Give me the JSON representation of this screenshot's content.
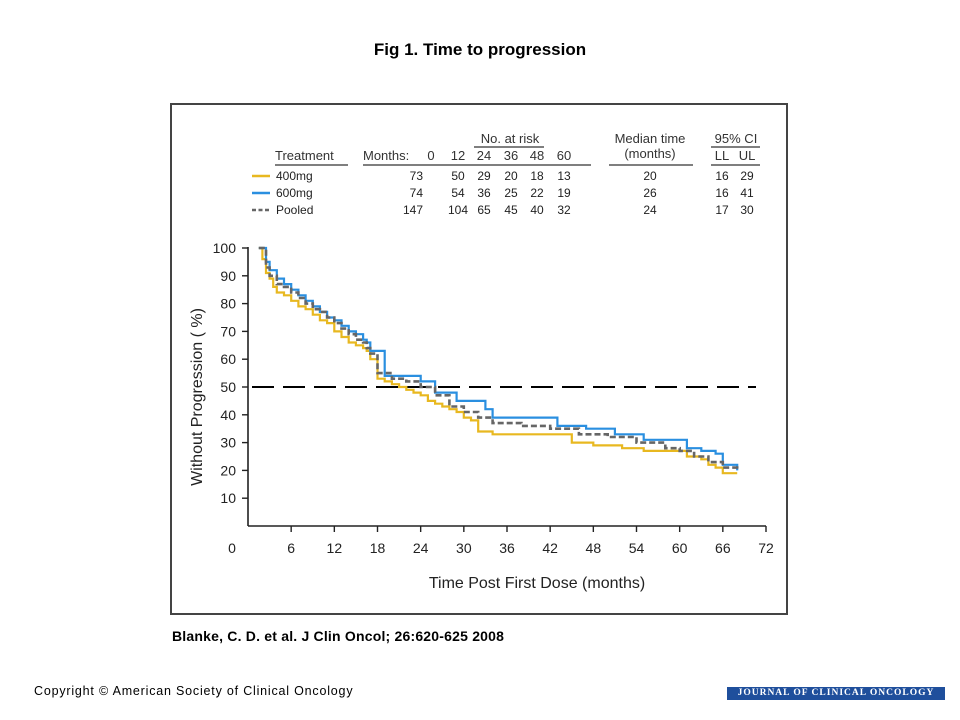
{
  "title": "Fig 1. Time to progression",
  "citation": "Blanke, C. D. et al. J Clin Oncol; 26:620-625 2008",
  "copyright": "Copyright © American Society of Clinical Oncology",
  "journal": "JOURNAL OF CLINICAL ONCOLOGY",
  "risk_table": {
    "headers": {
      "treatment": "Treatment",
      "months": "Months:",
      "no_at_risk": "No. at risk",
      "median": "Median time",
      "median_sub": "(months)",
      "ci": "95% CI",
      "ll": "LL",
      "ul": "UL"
    },
    "month_cols": [
      "0",
      "12",
      "24",
      "36",
      "48",
      "60"
    ],
    "rows": [
      {
        "label": "400mg",
        "color": "#e8b820",
        "dash": false,
        "at_risk": [
          "73",
          "50",
          "29",
          "20",
          "18",
          "13"
        ],
        "median": "20",
        "ll": "16",
        "ul": "29"
      },
      {
        "label": "600mg",
        "color": "#2a8fe0",
        "dash": false,
        "at_risk": [
          "74",
          "54",
          "36",
          "25",
          "22",
          "19"
        ],
        "median": "26",
        "ll": "16",
        "ul": "41"
      },
      {
        "label": "Pooled",
        "color": "#666666",
        "dash": true,
        "at_risk": [
          "147",
          "104",
          "65",
          "45",
          "40",
          "32"
        ],
        "median": "24",
        "ll": "17",
        "ul": "30"
      }
    ]
  },
  "chart_data": {
    "type": "line",
    "xlabel": "Time Post First Dose (months)",
    "ylabel": "Without Progression ( %)",
    "xlim": [
      0,
      72
    ],
    "ylim": [
      0,
      100
    ],
    "xticks": [
      0,
      6,
      12,
      18,
      24,
      30,
      36,
      42,
      48,
      54,
      60,
      66,
      72
    ],
    "yticks": [
      10,
      20,
      30,
      40,
      50,
      60,
      70,
      80,
      90,
      100
    ],
    "reference_line": {
      "y": 50,
      "style": "dashed",
      "color": "#000000"
    },
    "grid": false,
    "series": [
      {
        "name": "400mg",
        "color": "#e8b820",
        "dash": false,
        "x": [
          1.5,
          2,
          2.5,
          3,
          3.5,
          4,
          5,
          6,
          7,
          8,
          9,
          10,
          11,
          12,
          13,
          14,
          15,
          16,
          16.5,
          17,
          18,
          19,
          20,
          21,
          22,
          23,
          24,
          25,
          26,
          27,
          28,
          29,
          30,
          31,
          32,
          34,
          38,
          42,
          45,
          48,
          50,
          52,
          55,
          58,
          61,
          63,
          64,
          65,
          66,
          67,
          68
        ],
        "y": [
          100,
          96,
          91,
          89,
          86,
          84,
          83,
          81,
          79,
          78,
          76,
          74,
          73,
          70,
          68,
          66,
          65,
          64,
          63,
          60,
          53,
          52,
          51,
          50,
          49,
          48,
          47,
          45,
          44,
          43,
          42,
          41,
          39,
          38,
          34,
          33,
          33,
          33,
          30,
          29,
          29,
          28,
          27,
          27,
          25,
          24,
          22,
          21,
          19,
          19,
          19
        ]
      },
      {
        "name": "600mg",
        "color": "#2a8fe0",
        "dash": false,
        "x": [
          1.5,
          2.5,
          3,
          4,
          5,
          6,
          7,
          8,
          9,
          10,
          11,
          12,
          13,
          14,
          15,
          16,
          16.5,
          17,
          19,
          21,
          22,
          24,
          26,
          29,
          32,
          33,
          34,
          40,
          43,
          47,
          51,
          55,
          60,
          61,
          63,
          65,
          66,
          68
        ],
        "y": [
          100,
          95,
          92,
          89,
          87,
          85,
          83,
          81,
          79,
          77,
          75,
          74,
          72,
          70,
          69,
          67,
          66,
          63,
          54,
          54,
          54,
          52,
          48,
          45,
          45,
          42,
          39,
          39,
          36,
          35,
          33,
          31,
          31,
          28,
          27,
          26,
          22,
          20
        ]
      },
      {
        "name": "Pooled",
        "color": "#666666",
        "dash": true,
        "x": [
          1.5,
          2.5,
          3,
          4,
          5,
          6,
          7,
          8,
          9,
          10,
          11,
          12,
          13,
          14,
          15,
          16,
          16.5,
          17,
          18,
          20,
          22,
          24,
          26,
          28,
          30,
          32,
          34,
          38,
          42,
          46,
          50,
          54,
          58,
          60,
          62,
          64,
          66,
          68
        ],
        "y": [
          100,
          93,
          90,
          87,
          86,
          84,
          82,
          80,
          78,
          77,
          75,
          73,
          71,
          69,
          67,
          66,
          64,
          62,
          55,
          53,
          52,
          50,
          47,
          43,
          41,
          39,
          37,
          36,
          35,
          33,
          32,
          30,
          28,
          27,
          25,
          23,
          21,
          20
        ]
      }
    ]
  }
}
